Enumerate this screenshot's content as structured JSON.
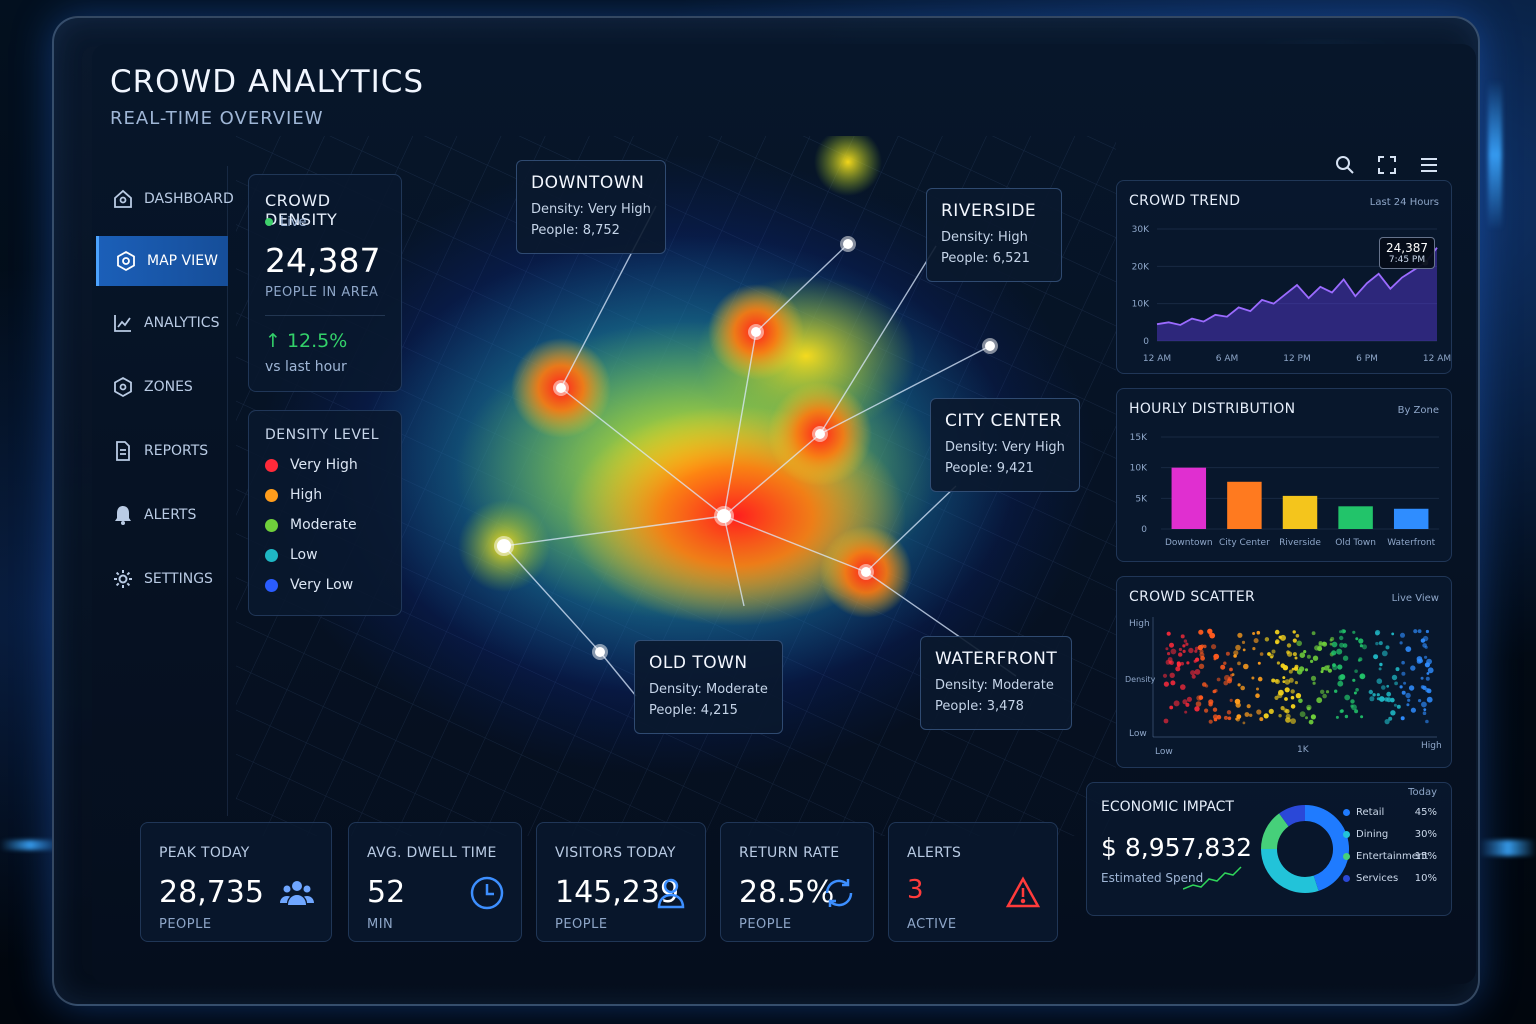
{
  "app": {
    "title": "CROWD ANALYTICS",
    "subtitle": "REAL-TIME OVERVIEW"
  },
  "toolbar_icons": [
    "search-icon",
    "fullscreen-icon",
    "menu-icon"
  ],
  "sidebar": {
    "items": [
      {
        "label": "DASHBOARD",
        "icon": "home-icon",
        "active": false
      },
      {
        "label": "MAP VIEW",
        "icon": "map-icon",
        "active": true
      },
      {
        "label": "ANALYTICS",
        "icon": "chart-icon",
        "active": false
      },
      {
        "label": "ZONES",
        "icon": "zone-icon",
        "active": false
      },
      {
        "label": "REPORTS",
        "icon": "document-icon",
        "active": false
      },
      {
        "label": "ALERTS",
        "icon": "bell-icon",
        "active": false
      },
      {
        "label": "SETTINGS",
        "icon": "gear-icon",
        "active": false
      }
    ]
  },
  "density_card": {
    "title": "CROWD DENSITY",
    "status": "Live",
    "value": "24,387",
    "label": "PEOPLE IN AREA",
    "change": "↑ 12.5%",
    "change_note": "vs last hour"
  },
  "legend": {
    "title": "DENSITY LEVEL",
    "items": [
      {
        "label": "Very High",
        "color": "#ff2a3a"
      },
      {
        "label": "High",
        "color": "#ff9d1c"
      },
      {
        "label": "Moderate",
        "color": "#6fcf3b"
      },
      {
        "label": "Low",
        "color": "#1fb7c4"
      },
      {
        "label": "Very Low",
        "color": "#2a5cff"
      }
    ]
  },
  "zones": [
    {
      "name": "DOWNTOWN",
      "density": "Density: Very High",
      "people": "People: 8,752"
    },
    {
      "name": "RIVERSIDE",
      "density": "Density: High",
      "people": "People: 6,521"
    },
    {
      "name": "CITY CENTER",
      "density": "Density: Very High",
      "people": "People: 9,421"
    },
    {
      "name": "OLD TOWN",
      "density": "Density: Moderate",
      "people": "People: 4,215"
    },
    {
      "name": "WATERFRONT",
      "density": "Density: Moderate",
      "people": "People: 3,478"
    }
  ],
  "trend_panel": {
    "title": "CROWD TREND",
    "subtitle": "Last 24 Hours",
    "tooltip_value": "24,387",
    "tooltip_time": "7:45 PM"
  },
  "hourly_panel": {
    "title": "HOURLY DISTRIBUTION",
    "subtitle": "By Zone"
  },
  "scatter_panel": {
    "title": "CROWD SCATTER",
    "subtitle": "Live View",
    "y_high": "High",
    "y_label": "Density",
    "y_low": "Low",
    "x_low": "Low",
    "x_high": "High",
    "x_mid": "1K"
  },
  "chart_data": [
    {
      "type": "area",
      "title": "CROWD TREND",
      "x_ticks": [
        "12 AM",
        "6 AM",
        "12 PM",
        "6 PM",
        "12 AM"
      ],
      "y_ticks": [
        "0",
        "10K",
        "20K",
        "30K"
      ],
      "ylim": [
        0,
        30000
      ],
      "x": [
        0,
        1,
        2,
        3,
        4,
        5,
        6,
        7,
        8,
        9,
        10,
        11,
        12,
        13,
        14,
        15,
        16,
        17,
        18,
        19,
        20,
        21,
        22,
        23,
        24
      ],
      "values": [
        4500,
        5000,
        4300,
        6000,
        5200,
        7000,
        6500,
        9000,
        8000,
        11000,
        10000,
        12500,
        15000,
        11500,
        14500,
        13000,
        16500,
        12000,
        15500,
        18000,
        14000,
        17000,
        19000,
        21000,
        25000
      ]
    },
    {
      "type": "bar",
      "title": "HOURLY DISTRIBUTION",
      "categories": [
        "Downtown",
        "City Center",
        "Riverside",
        "Old Town",
        "Waterfront"
      ],
      "values": [
        10000,
        7700,
        5400,
        3700,
        3300
      ],
      "colors": [
        "#e02fd0",
        "#ff7a1f",
        "#f4c51c",
        "#22c46a",
        "#2f8dff"
      ],
      "y_ticks": [
        "0",
        "5K",
        "10K",
        "15K"
      ],
      "ylim": [
        0,
        15000
      ]
    },
    {
      "type": "donut",
      "title": "ECONOMIC IMPACT",
      "categories": [
        "Retail",
        "Dining",
        "Entertainment",
        "Services"
      ],
      "values": [
        45,
        30,
        15,
        10
      ],
      "colors": [
        "#1f7bff",
        "#22c3d9",
        "#46d07a",
        "#2a48d8"
      ]
    }
  ],
  "stats": [
    {
      "label": "PEAK TODAY",
      "value": "28,735",
      "unit": "PEOPLE",
      "icon": "people-icon"
    },
    {
      "label": "AVG. DWELL TIME",
      "value": "52",
      "unit": "MIN",
      "icon": "clock-icon"
    },
    {
      "label": "VISITORS TODAY",
      "value": "145,239",
      "unit": "PEOPLE",
      "icon": "person-icon"
    },
    {
      "label": "RETURN RATE",
      "value": "28.5%",
      "unit": "PEOPLE",
      "icon": "refresh-icon"
    },
    {
      "label": "ALERTS",
      "value": "3",
      "unit": "ACTIVE",
      "icon": "warning-icon"
    }
  ],
  "economic": {
    "title": "ECONOMIC IMPACT",
    "value": "$ 8,957,832",
    "label": "Estimated Spend",
    "period": "Today",
    "rows": [
      {
        "label": "Retail",
        "pct": "45%"
      },
      {
        "label": "Dining",
        "pct": "30%"
      },
      {
        "label": "Entertainment",
        "pct": "15%"
      },
      {
        "label": "Services",
        "pct": "10%"
      }
    ]
  }
}
